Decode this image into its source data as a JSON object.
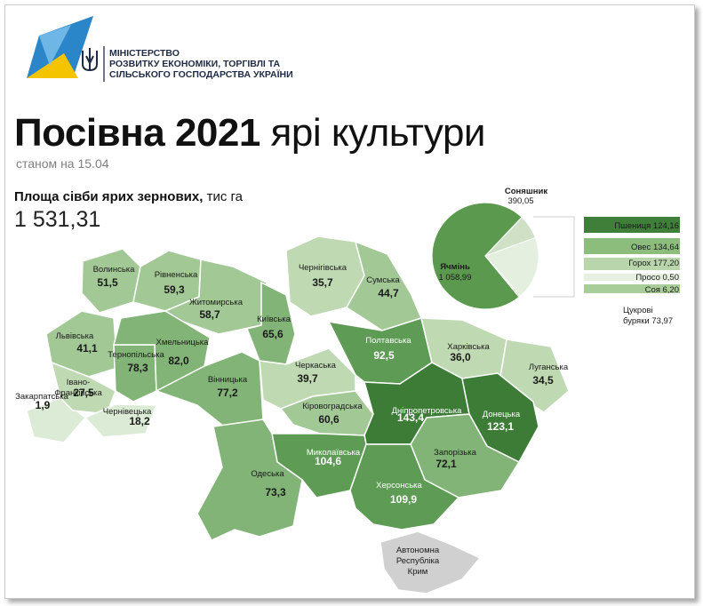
{
  "ministry": {
    "line1": "МІНІСТЕРСТВО",
    "line2": "РОЗВИТКУ ЕКОНОМІКИ, ТОРГІВЛІ ТА",
    "line3": "СІЛЬСЬКОГО ГОСПОДАРСТВА УКРАЇНИ"
  },
  "title": {
    "bold": "Посівна 2021",
    "rest": " ярі культури"
  },
  "subtitle": "станом на 15.04",
  "total": {
    "label_bold": "Площа сівби ярих зернових,",
    "label_rest": " тис га",
    "value": "1 531,31"
  },
  "regions": [
    {
      "name": "Волинська",
      "value": "51,5",
      "shade": 2
    },
    {
      "name": "Рівненська",
      "value": "59,3",
      "shade": 2
    },
    {
      "name": "Житомирська",
      "value": "58,7",
      "shade": 2
    },
    {
      "name": "Київська",
      "value": "65,6",
      "shade": 3
    },
    {
      "name": "Чернігівська",
      "value": "35,7",
      "shade": 1
    },
    {
      "name": "Сумська",
      "value": "44,7",
      "shade": 2
    },
    {
      "name": "Львівська",
      "value": "41,1",
      "shade": 2
    },
    {
      "name": "Тернопільська",
      "value": "78,3",
      "shade": 3
    },
    {
      "name": "Хмельницька",
      "value": "82,0",
      "shade": 3
    },
    {
      "name": "Вінницька",
      "value": "77,2",
      "shade": 3
    },
    {
      "name": "Черкаська",
      "value": "39,7",
      "shade": 1
    },
    {
      "name": "Полтавська",
      "value": "92,5",
      "shade": 4
    },
    {
      "name": "Харківська",
      "value": "36,0",
      "shade": 1
    },
    {
      "name": "Луганська",
      "value": "34,5",
      "shade": 1
    },
    {
      "name": "Закарпатська",
      "value": "1,9",
      "shade": 0
    },
    {
      "name": "Івано-Франківська",
      "value": "27,5",
      "shade": 1
    },
    {
      "name": "Чернівецька",
      "value": "18,2",
      "shade": 0
    },
    {
      "name": "Кіровоградська",
      "value": "60,6",
      "shade": 2
    },
    {
      "name": "Дніпропетровська",
      "value": "143,4",
      "shade": 5
    },
    {
      "name": "Донецька",
      "value": "123,1",
      "shade": 5
    },
    {
      "name": "Миколаївська",
      "value": "104,6",
      "shade": 4
    },
    {
      "name": "Запорізька",
      "value": "72,1",
      "shade": 3
    },
    {
      "name": "Одеська",
      "value": "73,3",
      "shade": 3
    },
    {
      "name": "Херсонська",
      "value": "109,9",
      "shade": 4
    },
    {
      "name": "Автономна Республіка Крим",
      "value": "",
      "shade": -1
    }
  ],
  "chart_data": {
    "type": "pie",
    "slices": [
      {
        "name": "Ячмінь",
        "value": 1058.99,
        "label": "1 058,99",
        "color": "#5b9a4e"
      },
      {
        "name": "Соняшник",
        "value": 390.05,
        "label": "390,05",
        "color": "#cfe0c6"
      },
      {
        "name": "Пшениця",
        "value": 124.16,
        "label": "124,16",
        "color": "#3f7f3a"
      },
      {
        "name": "Овес",
        "value": 134.64,
        "label": "134,64",
        "color": "#8cbd7c"
      },
      {
        "name": "Горох",
        "value": 177.2,
        "label": "177,20",
        "color": "#b9d5ac"
      },
      {
        "name": "Просо",
        "value": 0.5,
        "label": "0,50",
        "color": "#e6f0e0"
      },
      {
        "name": "Соя",
        "value": 6.2,
        "label": "6,20",
        "color": "#a9cd98"
      },
      {
        "name": "Цукрові буряки",
        "value": 73.97,
        "label": "73,97",
        "color": "#ffffff"
      }
    ]
  },
  "colors": {
    "shades": [
      "#dcebd5",
      "#bfd9b3",
      "#a2c896",
      "#82b477",
      "#5e9b55",
      "#3c7c37"
    ],
    "crimea": "#d0d0d0",
    "logo_blue": "#2a86c8",
    "logo_yellow": "#f5c400"
  }
}
